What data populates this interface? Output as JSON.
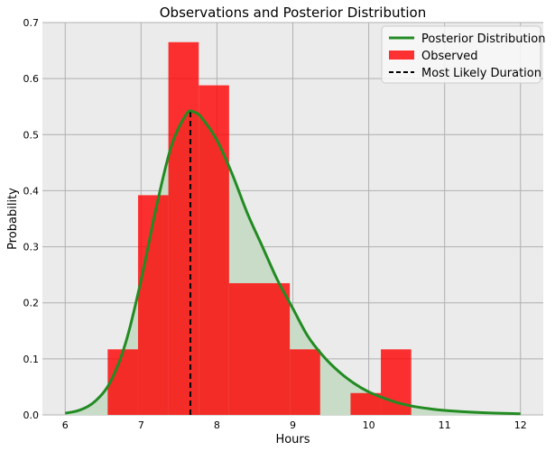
{
  "chart_data": {
    "type": "histogram_with_curve",
    "title": "Observations and Posterior Distribution",
    "xlabel": "Hours",
    "ylabel": "Probability",
    "xlim": [
      5.7,
      12.3
    ],
    "ylim": [
      0,
      0.7
    ],
    "xticks": [
      "6",
      "7",
      "8",
      "9",
      "10",
      "11",
      "12"
    ],
    "yticks": [
      "0.0",
      "0.1",
      "0.2",
      "0.3",
      "0.4",
      "0.5",
      "0.6",
      "0.7"
    ],
    "grid": true,
    "legend_position": "top-right",
    "colors": {
      "posterior": "#228b22",
      "posterior_fill": "#c8dcc8",
      "observed": "#ff0000",
      "most_likely": "#000000",
      "plot_background": "#ebebeb",
      "grid": "#b0b0b0"
    },
    "series": [
      {
        "name": "Observed",
        "type": "bar",
        "bins": [
          {
            "x0": 6.56,
            "x1": 6.96,
            "value": 0.117
          },
          {
            "x0": 6.96,
            "x1": 7.36,
            "value": 0.392
          },
          {
            "x0": 7.36,
            "x1": 7.76,
            "value": 0.665
          },
          {
            "x0": 7.76,
            "x1": 8.16,
            "value": 0.588
          },
          {
            "x0": 8.16,
            "x1": 8.56,
            "value": 0.235
          },
          {
            "x0": 8.56,
            "x1": 8.96,
            "value": 0.235
          },
          {
            "x0": 8.96,
            "x1": 9.36,
            "value": 0.117
          },
          {
            "x0": 9.36,
            "x1": 9.76,
            "value": 0.0
          },
          {
            "x0": 9.76,
            "x1": 10.16,
            "value": 0.039
          },
          {
            "x0": 10.16,
            "x1": 10.56,
            "value": 0.117
          }
        ]
      },
      {
        "name": "Posterior Distribution",
        "type": "line",
        "points": [
          [
            6.0,
            0.003
          ],
          [
            6.2,
            0.009
          ],
          [
            6.4,
            0.025
          ],
          [
            6.6,
            0.06
          ],
          [
            6.8,
            0.13
          ],
          [
            7.0,
            0.24
          ],
          [
            7.2,
            0.37
          ],
          [
            7.4,
            0.48
          ],
          [
            7.6,
            0.537
          ],
          [
            7.7,
            0.54
          ],
          [
            7.8,
            0.53
          ],
          [
            8.0,
            0.49
          ],
          [
            8.2,
            0.43
          ],
          [
            8.4,
            0.36
          ],
          [
            8.6,
            0.3
          ],
          [
            8.8,
            0.24
          ],
          [
            9.0,
            0.19
          ],
          [
            9.2,
            0.14
          ],
          [
            9.4,
            0.105
          ],
          [
            9.6,
            0.078
          ],
          [
            9.8,
            0.057
          ],
          [
            10.0,
            0.041
          ],
          [
            10.2,
            0.03
          ],
          [
            10.4,
            0.021
          ],
          [
            10.6,
            0.015
          ],
          [
            10.8,
            0.011
          ],
          [
            11.0,
            0.008
          ],
          [
            11.5,
            0.004
          ],
          [
            12.0,
            0.002
          ]
        ]
      },
      {
        "name": "Most Likely Duration",
        "type": "vline",
        "x": 7.65,
        "y_top": 0.54
      }
    ]
  }
}
